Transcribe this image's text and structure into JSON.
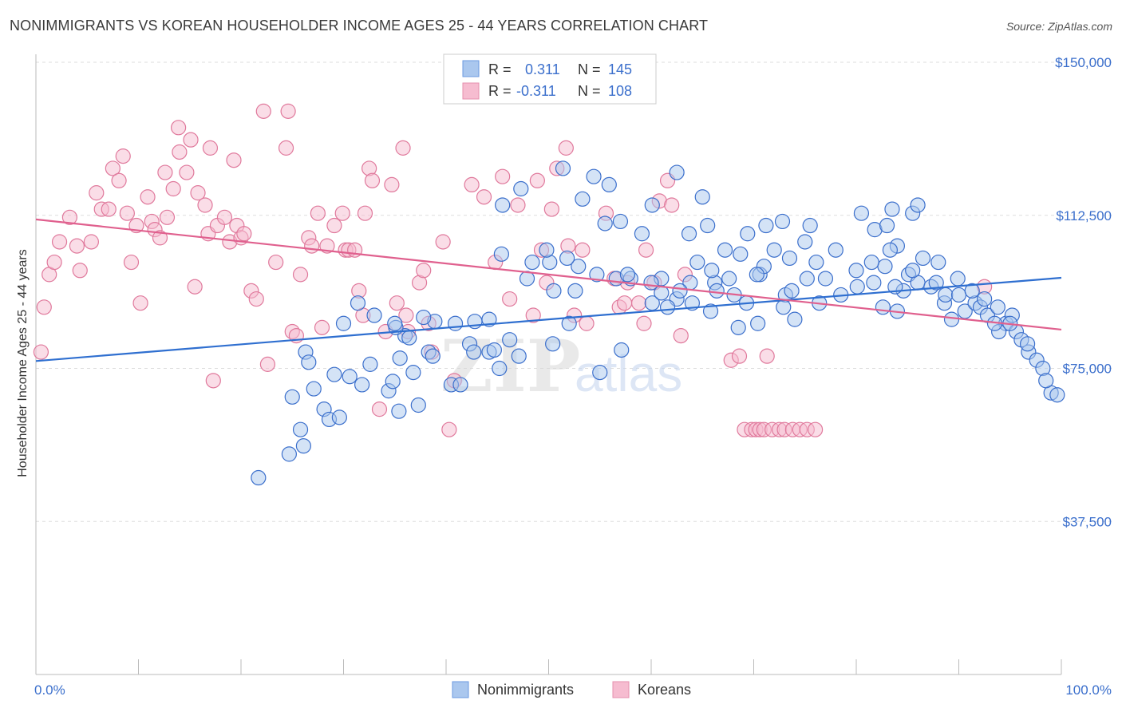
{
  "title": "NONIMMIGRANTS VS KOREAN HOUSEHOLDER INCOME AGES 25 - 44 YEARS CORRELATION CHART",
  "source": "Source: ZipAtlas.com",
  "watermark": {
    "zip": "ZIP",
    "atlas": "atlas"
  },
  "colors": {
    "blue": "#3b6fcc",
    "blue_fill": "#aac7ee",
    "blue_line": "#2f6fd0",
    "pink": "#e0799c",
    "pink_fill": "#f6bcd0",
    "pink_line": "#e0608e",
    "grid": "#dddddd"
  },
  "legend": {
    "rows": [
      {
        "r_label": "R =",
        "r_value": "0.311",
        "n_label": "N =",
        "n_value": "145"
      },
      {
        "r_label": "R =",
        "r_value": "-0.311",
        "n_label": "N =",
        "n_value": "108"
      }
    ]
  },
  "bottom_legend": [
    "Nonimmigrants",
    "Koreans"
  ],
  "chart_data": {
    "type": "scatter",
    "title": "NONIMMIGRANTS VS KOREAN HOUSEHOLDER INCOME AGES 25 - 44 YEARS CORRELATION CHART",
    "xlabel": "",
    "ylabel": "Householder Income Ages 25 - 44 years",
    "xlim": [
      0,
      100
    ],
    "ylim": [
      0,
      155000
    ],
    "x_tick_labels": [
      "0.0%",
      "100.0%"
    ],
    "y_ticks": [
      37500,
      75000,
      112500,
      150000
    ],
    "y_tick_labels": [
      "$37,500",
      "$75,000",
      "$112,500",
      "$150,000"
    ],
    "grid": "horizontal dashed",
    "legend_position": "top-center",
    "series": [
      {
        "name": "Nonimmigrants",
        "r": 0.311,
        "n": 145,
        "trend": [
          [
            0,
            76800
          ],
          [
            100,
            97200
          ]
        ],
        "points": [
          [
            21.7,
            48200
          ],
          [
            24.7,
            54000
          ],
          [
            25.8,
            60000
          ],
          [
            26.1,
            56000
          ],
          [
            25.0,
            68000
          ],
          [
            26.3,
            79000
          ],
          [
            27.1,
            70000
          ],
          [
            26.6,
            76500
          ],
          [
            28.1,
            65000
          ],
          [
            28.6,
            62500
          ],
          [
            29.6,
            63000
          ],
          [
            30.6,
            73000
          ],
          [
            29.1,
            73500
          ],
          [
            31.8,
            71000
          ],
          [
            32.6,
            76000
          ],
          [
            34.4,
            69500
          ],
          [
            34.8,
            71800
          ],
          [
            35.4,
            64500
          ],
          [
            36.0,
            83000
          ],
          [
            35.1,
            85000
          ],
          [
            35.5,
            77500
          ],
          [
            36.8,
            74000
          ],
          [
            37.3,
            66000
          ],
          [
            38.3,
            79000
          ],
          [
            38.7,
            78000
          ],
          [
            40.5,
            71000
          ],
          [
            41.4,
            71000
          ],
          [
            42.8,
            86500
          ],
          [
            42.3,
            81000
          ],
          [
            44.2,
            79000
          ],
          [
            44.7,
            79500
          ],
          [
            45.2,
            75000
          ],
          [
            46.2,
            82000
          ],
          [
            47.1,
            78000
          ],
          [
            50.4,
            81000
          ],
          [
            55.0,
            74000
          ],
          [
            52.0,
            86000
          ],
          [
            57.1,
            79500
          ],
          [
            60.1,
            91000
          ],
          [
            61.0,
            93500
          ],
          [
            62.5,
            92000
          ],
          [
            61.6,
            90000
          ],
          [
            64.0,
            91000
          ],
          [
            65.8,
            89000
          ],
          [
            66.2,
            96000
          ],
          [
            66.4,
            94000
          ],
          [
            68.1,
            93000
          ],
          [
            68.5,
            85000
          ],
          [
            69.3,
            91000
          ],
          [
            67.6,
            97000
          ],
          [
            70.6,
            98000
          ],
          [
            73.1,
            93000
          ],
          [
            72.9,
            90000
          ],
          [
            70.4,
            86000
          ],
          [
            74.0,
            87000
          ],
          [
            73.7,
            94000
          ],
          [
            75.2,
            97000
          ],
          [
            76.4,
            91000
          ],
          [
            78.5,
            93000
          ],
          [
            80.1,
            95000
          ],
          [
            81.7,
            96000
          ],
          [
            82.6,
            90000
          ],
          [
            84.0,
            89000
          ],
          [
            85.1,
            98000
          ],
          [
            86.0,
            96000
          ],
          [
            84.6,
            94000
          ],
          [
            83.8,
            95000
          ],
          [
            85.5,
            99000
          ],
          [
            87.3,
            95000
          ],
          [
            87.8,
            96000
          ],
          [
            88.6,
            91000
          ],
          [
            88.7,
            93000
          ],
          [
            89.3,
            87000
          ],
          [
            90.0,
            93000
          ],
          [
            90.6,
            89000
          ],
          [
            91.6,
            91000
          ],
          [
            92.1,
            90000
          ],
          [
            92.8,
            88000
          ],
          [
            94.6,
            86000
          ],
          [
            95.2,
            88000
          ],
          [
            93.9,
            84000
          ],
          [
            93.5,
            86000
          ],
          [
            95.6,
            84000
          ],
          [
            96.1,
            82000
          ],
          [
            96.8,
            79000
          ],
          [
            97.6,
            77000
          ],
          [
            98.2,
            75000
          ],
          [
            99.0,
            69000
          ],
          [
            99.6,
            68500
          ],
          [
            98.5,
            72000
          ],
          [
            96.7,
            81000
          ],
          [
            95.0,
            86000
          ],
          [
            93.8,
            90000
          ],
          [
            92.5,
            92000
          ],
          [
            91.3,
            94000
          ],
          [
            89.9,
            97000
          ],
          [
            88.0,
            101000
          ],
          [
            86.5,
            102000
          ],
          [
            84.0,
            105000
          ],
          [
            83.3,
            104000
          ],
          [
            82.8,
            100000
          ],
          [
            81.5,
            101000
          ],
          [
            80.0,
            99000
          ],
          [
            78.0,
            104000
          ],
          [
            77.0,
            97000
          ],
          [
            76.1,
            101000
          ],
          [
            75.0,
            106000
          ],
          [
            73.5,
            102000
          ],
          [
            72.0,
            104000
          ],
          [
            71.0,
            100000
          ],
          [
            70.3,
            98000
          ],
          [
            68.7,
            103000
          ],
          [
            67.2,
            104000
          ],
          [
            65.9,
            99000
          ],
          [
            64.5,
            101000
          ],
          [
            63.8,
            96000
          ],
          [
            62.8,
            94000
          ],
          [
            61.0,
            97000
          ],
          [
            60.0,
            96000
          ],
          [
            58.0,
            97000
          ],
          [
            56.6,
            97000
          ],
          [
            54.7,
            98000
          ],
          [
            52.9,
            100000
          ],
          [
            51.8,
            102000
          ],
          [
            50.1,
            101000
          ],
          [
            49.8,
            104000
          ],
          [
            48.4,
            101000
          ],
          [
            47.9,
            97000
          ],
          [
            45.4,
            103000
          ],
          [
            44.2,
            87000
          ],
          [
            42.7,
            79000
          ],
          [
            40.9,
            86000
          ],
          [
            38.9,
            86500
          ],
          [
            37.8,
            87500
          ],
          [
            36.4,
            82500
          ],
          [
            35.0,
            86000
          ],
          [
            33.0,
            88000
          ],
          [
            31.4,
            91000
          ],
          [
            30.0,
            86000
          ],
          [
            50.5,
            94000
          ],
          [
            52.6,
            94000
          ],
          [
            57.7,
            98000
          ],
          [
            59.1,
            108000
          ],
          [
            53.3,
            116500
          ],
          [
            55.5,
            110500
          ],
          [
            57.0,
            111000
          ],
          [
            60.1,
            115000
          ],
          [
            62.5,
            123000
          ],
          [
            65.0,
            117000
          ],
          [
            55.9,
            120000
          ],
          [
            54.4,
            122000
          ],
          [
            51.4,
            124000
          ],
          [
            47.3,
            119000
          ],
          [
            45.5,
            115000
          ],
          [
            63.7,
            108000
          ],
          [
            65.5,
            110000
          ],
          [
            69.4,
            108000
          ],
          [
            71.2,
            110000
          ],
          [
            72.8,
            111000
          ],
          [
            75.5,
            110000
          ],
          [
            80.5,
            113000
          ],
          [
            81.8,
            109000
          ],
          [
            83.0,
            110000
          ],
          [
            85.5,
            113000
          ],
          [
            83.5,
            114000
          ],
          [
            86.0,
            115000
          ]
        ]
      },
      {
        "name": "Koreans",
        "r": -0.311,
        "n": 108,
        "trend": [
          [
            0,
            111500
          ],
          [
            100,
            84500
          ]
        ],
        "points": [
          [
            0.5,
            79000
          ],
          [
            0.8,
            90000
          ],
          [
            1.3,
            98000
          ],
          [
            1.8,
            101000
          ],
          [
            2.3,
            106000
          ],
          [
            3.3,
            112000
          ],
          [
            4.0,
            105000
          ],
          [
            4.3,
            99000
          ],
          [
            5.4,
            106000
          ],
          [
            5.9,
            118000
          ],
          [
            6.4,
            114000
          ],
          [
            7.1,
            114000
          ],
          [
            7.5,
            124000
          ],
          [
            8.1,
            121000
          ],
          [
            8.5,
            127000
          ],
          [
            8.9,
            113000
          ],
          [
            9.3,
            101000
          ],
          [
            9.8,
            110000
          ],
          [
            10.2,
            91000
          ],
          [
            10.9,
            117000
          ],
          [
            11.3,
            111000
          ],
          [
            11.6,
            109000
          ],
          [
            12.1,
            107000
          ],
          [
            12.6,
            123000
          ],
          [
            12.8,
            112000
          ],
          [
            13.4,
            119000
          ],
          [
            13.9,
            134000
          ],
          [
            14.0,
            128000
          ],
          [
            14.7,
            123000
          ],
          [
            15.1,
            131000
          ],
          [
            15.5,
            95000
          ],
          [
            15.8,
            118000
          ],
          [
            16.5,
            115000
          ],
          [
            16.8,
            108000
          ],
          [
            17.0,
            129000
          ],
          [
            17.3,
            72000
          ],
          [
            17.7,
            110000
          ],
          [
            18.4,
            112000
          ],
          [
            18.9,
            106000
          ],
          [
            19.3,
            126000
          ],
          [
            19.6,
            110000
          ],
          [
            20.0,
            107000
          ],
          [
            20.3,
            108000
          ],
          [
            21.0,
            94000
          ],
          [
            21.5,
            92000
          ],
          [
            22.2,
            138000
          ],
          [
            22.6,
            76000
          ],
          [
            23.4,
            101000
          ],
          [
            24.4,
            129000
          ],
          [
            24.6,
            138000
          ],
          [
            25.0,
            84000
          ],
          [
            25.4,
            83000
          ],
          [
            25.8,
            98000
          ],
          [
            26.6,
            107000
          ],
          [
            26.9,
            105000
          ],
          [
            27.5,
            113000
          ],
          [
            27.9,
            85000
          ],
          [
            28.4,
            105000
          ],
          [
            29.1,
            110000
          ],
          [
            29.9,
            113000
          ],
          [
            30.2,
            104000
          ],
          [
            30.5,
            104000
          ],
          [
            31.1,
            104000
          ],
          [
            31.5,
            94000
          ],
          [
            31.9,
            88000
          ],
          [
            32.1,
            113000
          ],
          [
            32.5,
            124000
          ],
          [
            32.8,
            121000
          ],
          [
            33.5,
            65000
          ],
          [
            34.1,
            84000
          ],
          [
            34.7,
            120000
          ],
          [
            35.2,
            91000
          ],
          [
            35.8,
            129000
          ],
          [
            36.1,
            88000
          ],
          [
            36.3,
            84000
          ],
          [
            37.4,
            96000
          ],
          [
            37.8,
            99000
          ],
          [
            38.3,
            86000
          ],
          [
            38.6,
            79000
          ],
          [
            39.7,
            106000
          ],
          [
            40.3,
            60000
          ],
          [
            40.8,
            72000
          ],
          [
            42.5,
            120000
          ],
          [
            43.7,
            117000
          ],
          [
            44.8,
            101000
          ],
          [
            45.5,
            122000
          ],
          [
            46.2,
            92000
          ],
          [
            47.0,
            115000
          ],
          [
            48.5,
            88000
          ],
          [
            48.9,
            121000
          ],
          [
            49.3,
            104000
          ],
          [
            49.8,
            96000
          ],
          [
            50.3,
            114000
          ],
          [
            50.8,
            124000
          ],
          [
            51.7,
            129000
          ],
          [
            51.9,
            105000
          ],
          [
            52.5,
            88000
          ],
          [
            53.3,
            104000
          ],
          [
            53.7,
            86000
          ],
          [
            55.6,
            113000
          ],
          [
            56.4,
            97000
          ],
          [
            56.9,
            90000
          ],
          [
            57.4,
            91000
          ],
          [
            57.7,
            96000
          ],
          [
            58.8,
            91000
          ],
          [
            59.3,
            86000
          ],
          [
            59.5,
            104000
          ],
          [
            60.3,
            96000
          ],
          [
            60.8,
            116000
          ],
          [
            61.6,
            121000
          ],
          [
            62.0,
            115000
          ],
          [
            62.9,
            83000
          ],
          [
            63.3,
            98000
          ],
          [
            67.8,
            77000
          ],
          [
            68.6,
            78000
          ],
          [
            69.1,
            60000
          ],
          [
            69.8,
            60000
          ],
          [
            70.2,
            60000
          ],
          [
            70.6,
            60000
          ],
          [
            71.0,
            60000
          ],
          [
            71.3,
            78000
          ],
          [
            71.8,
            60000
          ],
          [
            72.5,
            60000
          ],
          [
            73.0,
            60000
          ],
          [
            73.8,
            60000
          ],
          [
            74.5,
            60000
          ],
          [
            75.2,
            60000
          ],
          [
            76.0,
            60000
          ],
          [
            92.5,
            95000
          ]
        ]
      }
    ]
  }
}
